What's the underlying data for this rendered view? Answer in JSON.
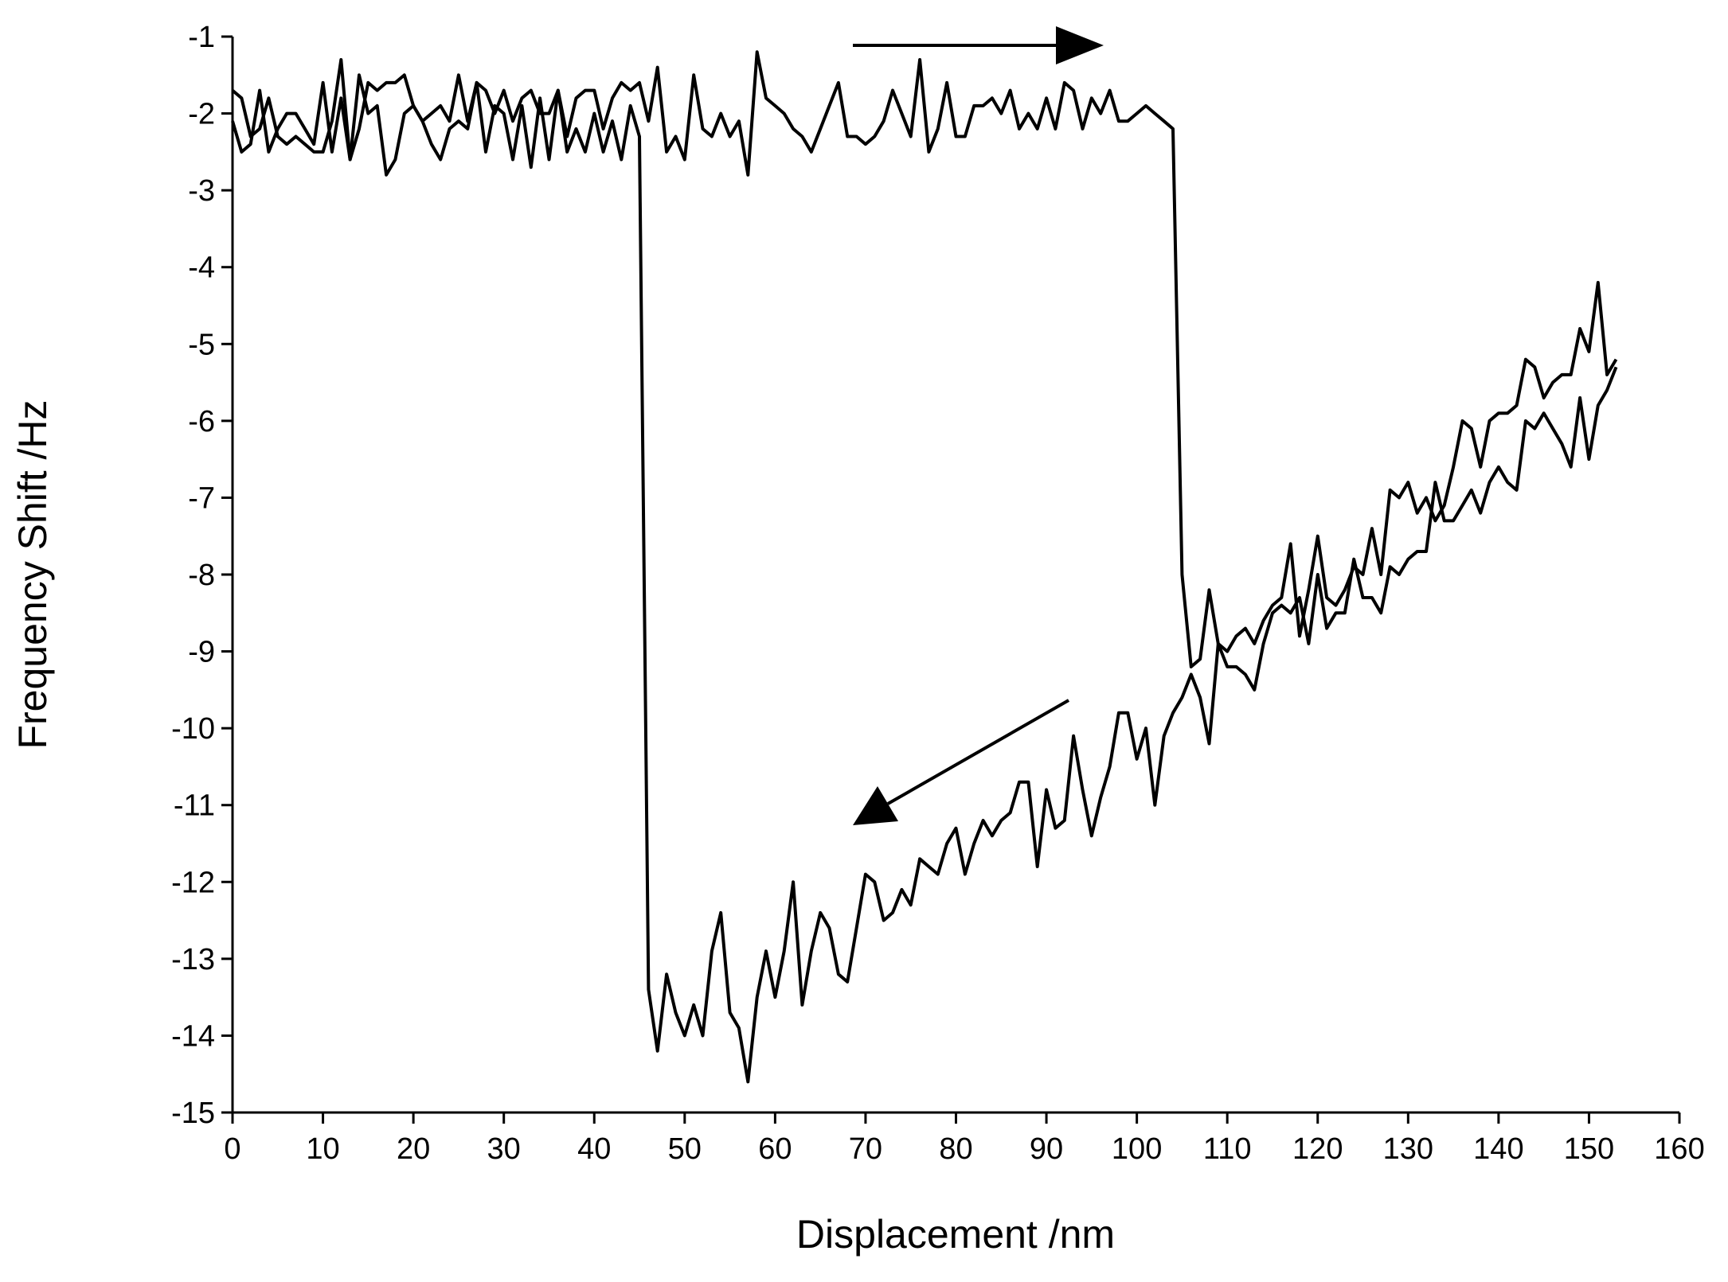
{
  "chart_data": {
    "type": "line",
    "x_label": "Displacement /nm",
    "y_label": "Frequency Shift /Hz",
    "x": [
      0,
      1,
      2,
      3,
      4,
      5,
      6,
      7,
      8,
      9,
      10,
      11,
      12,
      13,
      14,
      15,
      16,
      17,
      18,
      19,
      20,
      21,
      22,
      23,
      24,
      25,
      26,
      27,
      28,
      29,
      30,
      31,
      32,
      33,
      34,
      35,
      36,
      37,
      38,
      39,
      40,
      41,
      42,
      43,
      44,
      45,
      46,
      47,
      48,
      49,
      50,
      51,
      52,
      53,
      54,
      55,
      56,
      57,
      58,
      59,
      60,
      61,
      62,
      63,
      64,
      65,
      66,
      67,
      68,
      69,
      70,
      71,
      72,
      73,
      74,
      75,
      76,
      77,
      78,
      79,
      80,
      81,
      82,
      83,
      84,
      85,
      86,
      87,
      88,
      89,
      90,
      91,
      92,
      93,
      94,
      95,
      96,
      97,
      98,
      99,
      100,
      101,
      102,
      103,
      104,
      105,
      106,
      107,
      108,
      109,
      110,
      111,
      112,
      113,
      114,
      115,
      116,
      117,
      118,
      119,
      120,
      121,
      122,
      123,
      124,
      125,
      126,
      127,
      128,
      129,
      130,
      131,
      132,
      133,
      134,
      135,
      136,
      137,
      138,
      139,
      140,
      141,
      142,
      143,
      144,
      145,
      146,
      147,
      148,
      149,
      150,
      151,
      152,
      153
    ],
    "series": [
      {
        "color": "#000000",
        "values": [
          -1.7,
          -1.8,
          -2.3,
          -2.2,
          -1.8,
          -2.3,
          -2.4,
          -2.3,
          -2.4,
          -2.5,
          -2.5,
          -2.1,
          -1.3,
          -2.6,
          -2.2,
          -1.6,
          -1.7,
          -1.6,
          -1.6,
          -1.5,
          -1.9,
          -2.1,
          -2.0,
          -1.9,
          -2.1,
          -1.5,
          -2.1,
          -1.6,
          -1.7,
          -2.0,
          -1.7,
          -2.1,
          -1.8,
          -1.7,
          -2.0,
          -2.0,
          -1.7,
          -2.3,
          -1.8,
          -1.7,
          -1.7,
          -2.2,
          -1.8,
          -1.6,
          -1.7,
          -1.6,
          -2.1,
          -1.4,
          -2.5,
          -2.3,
          -2.6,
          -1.5,
          -2.2,
          -2.3,
          -2.0,
          -2.3,
          -2.1,
          -2.8,
          -1.2,
          -1.8,
          -1.9,
          -2.0,
          -2.2,
          -2.3,
          -2.5,
          -2.2,
          -1.9,
          -1.6,
          -2.3,
          -2.3,
          -2.4,
          -2.3,
          -2.1,
          -1.7,
          -2.0,
          -2.3,
          -1.3,
          -2.5,
          -2.2,
          -1.6,
          -2.3,
          -2.3,
          -1.9,
          -1.9,
          -1.8,
          -2.0,
          -1.7,
          -2.2,
          -2.0,
          -2.2,
          -1.8,
          -2.2,
          -1.6,
          -1.7,
          -2.2,
          -1.8,
          -2.0,
          -1.7,
          -2.1,
          -2.1,
          -2.0,
          -1.9,
          -2.0,
          -2.1,
          -2.2,
          -8.0,
          -9.2,
          -9.1,
          -8.2,
          -8.9,
          -9.0,
          -8.8,
          -8.7,
          -8.9,
          -8.6,
          -8.4,
          -8.3,
          -7.6,
          -8.8,
          -8.2,
          -7.5,
          -8.3,
          -8.4,
          -8.2,
          -7.9,
          -8.0,
          -7.4,
          -8.0,
          -6.9,
          -7.0,
          -6.8,
          -7.2,
          -7.0,
          -7.3,
          -7.1,
          -6.6,
          -6.0,
          -6.1,
          -6.6,
          -6.0,
          -5.9,
          -5.9,
          -5.8,
          -5.2,
          -5.3,
          -5.7,
          -5.5,
          -5.4,
          -5.4,
          -4.8,
          -5.1,
          -4.2,
          -5.4,
          -5.2
        ]
      },
      {
        "color": "#000000",
        "values": [
          -2.1,
          -2.5,
          -2.4,
          -1.7,
          -2.5,
          -2.2,
          -2.0,
          -2.0,
          -2.2,
          -2.4,
          -1.6,
          -2.5,
          -1.8,
          -2.6,
          -1.5,
          -2.0,
          -1.9,
          -2.8,
          -2.6,
          -2.0,
          -1.9,
          -2.1,
          -2.4,
          -2.6,
          -2.2,
          -2.1,
          -2.2,
          -1.6,
          -2.5,
          -1.9,
          -2.0,
          -2.6,
          -1.9,
          -2.7,
          -1.8,
          -2.6,
          -1.7,
          -2.5,
          -2.2,
          -2.5,
          -2.0,
          -2.5,
          -2.1,
          -2.6,
          -1.9,
          -2.3,
          -13.4,
          -14.2,
          -13.2,
          -13.7,
          -14.0,
          -13.6,
          -14.0,
          -12.9,
          -12.4,
          -13.7,
          -13.9,
          -14.6,
          -13.5,
          -12.9,
          -13.5,
          -12.9,
          -12.0,
          -13.6,
          -12.9,
          -12.4,
          -12.6,
          -13.2,
          -13.3,
          -12.6,
          -11.9,
          -12.0,
          -12.5,
          -12.4,
          -12.1,
          -12.3,
          -11.7,
          -11.8,
          -11.9,
          -11.5,
          -11.3,
          -11.9,
          -11.5,
          -11.2,
          -11.4,
          -11.2,
          -11.1,
          -10.7,
          -10.7,
          -11.8,
          -10.8,
          -11.3,
          -11.2,
          -10.1,
          -10.8,
          -11.4,
          -10.9,
          -10.5,
          -9.8,
          -9.8,
          -10.4,
          -10.0,
          -11.0,
          -10.1,
          -9.8,
          -9.6,
          -9.3,
          -9.6,
          -10.2,
          -8.9,
          -9.2,
          -9.2,
          -9.3,
          -9.5,
          -8.9,
          -8.5,
          -8.4,
          -8.5,
          -8.3,
          -8.9,
          -8.0,
          -8.7,
          -8.5,
          -8.5,
          -7.8,
          -8.3,
          -8.3,
          -8.5,
          -7.9,
          -8.0,
          -7.8,
          -7.7,
          -7.7,
          -6.8,
          -7.3,
          -7.3,
          -7.1,
          -6.9,
          -7.2,
          -6.8,
          -6.6,
          -6.8,
          -6.9,
          -6.0,
          -6.1,
          -5.9,
          -6.1,
          -6.3,
          -6.6,
          -5.7,
          -6.5,
          -5.8,
          -5.6,
          -5.3
        ]
      }
    ],
    "xlim": [
      0,
      160
    ],
    "xticks": [
      0,
      10,
      20,
      30,
      40,
      50,
      60,
      70,
      80,
      90,
      100,
      110,
      120,
      130,
      140,
      150,
      160
    ],
    "ylim": [
      -15,
      -1
    ],
    "yticks": [
      -15,
      -14,
      -13,
      -12,
      -11,
      -10,
      -9,
      -8,
      -7,
      -6,
      -5,
      -4,
      -3,
      -2,
      -1
    ]
  }
}
